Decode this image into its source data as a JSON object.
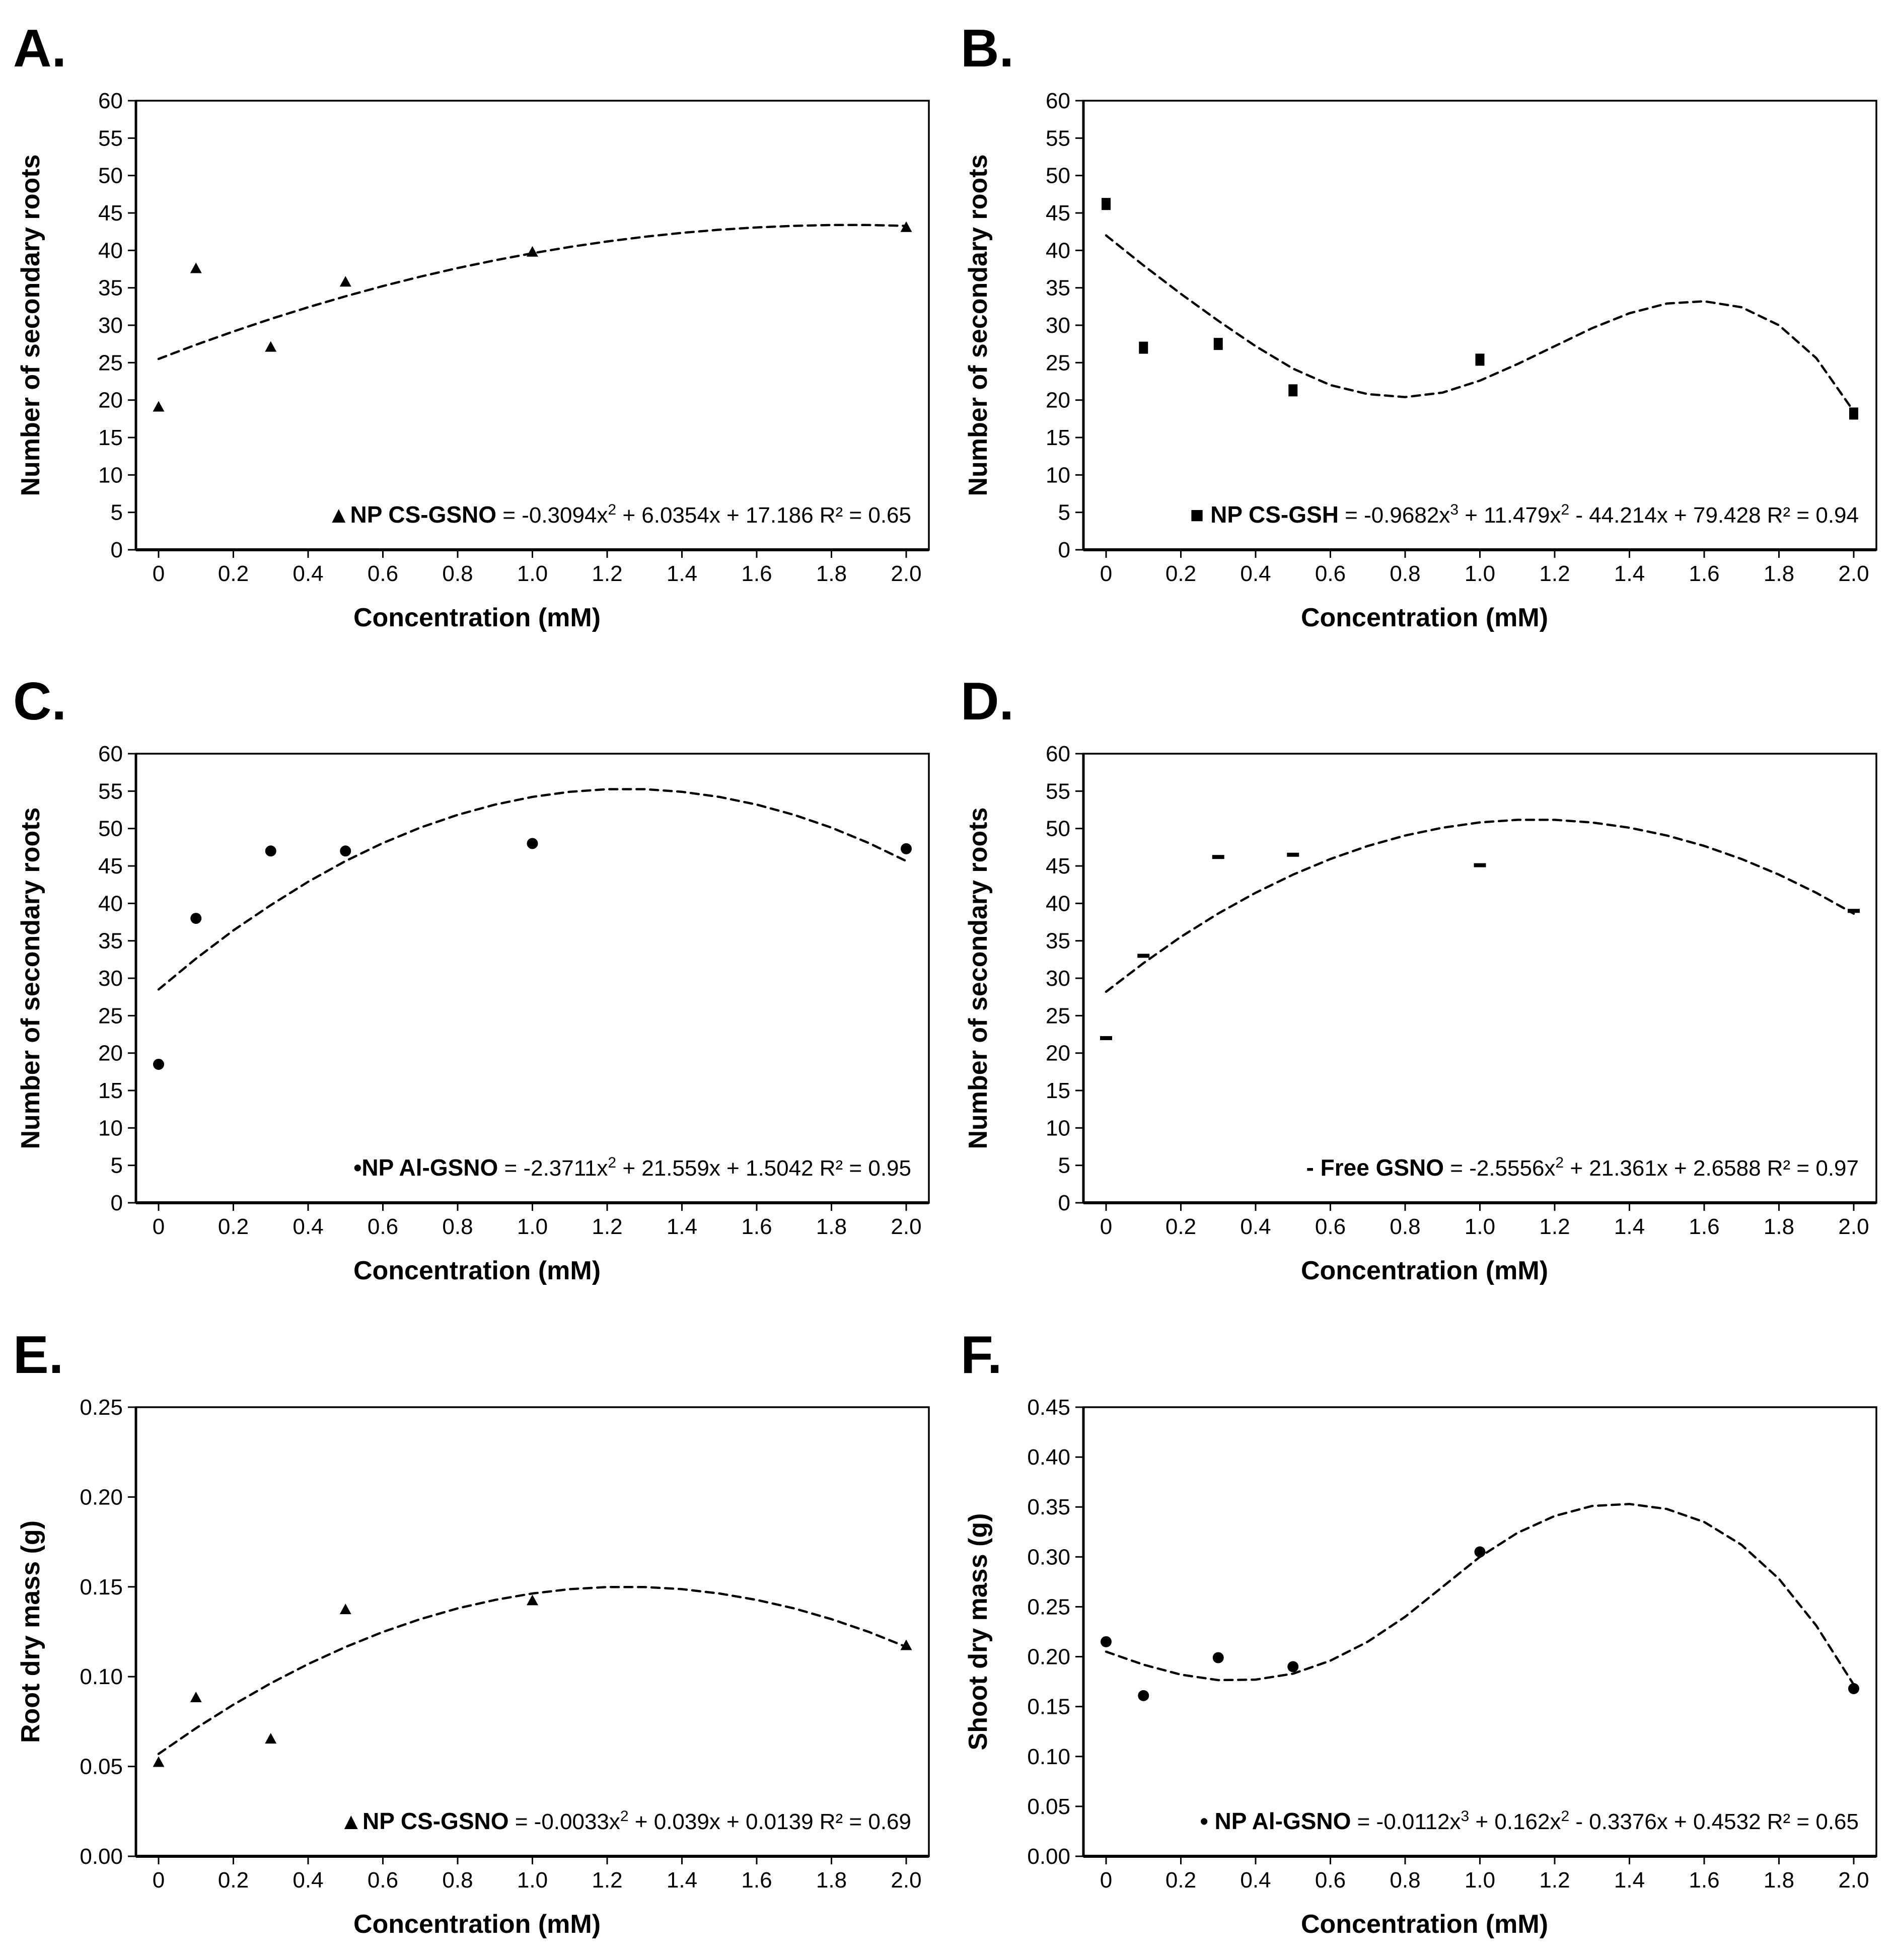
{
  "colors": {
    "ink": "#000000",
    "background": "#ffffff"
  },
  "chart_data": [
    {
      "id": "A",
      "label": "A.",
      "type": "scatter",
      "xlabel": "Concentration (mM)",
      "ylabel": "Number of secondary roots",
      "ylim": [
        0,
        60
      ],
      "ystep": 5,
      "ydec": 0,
      "xlim": [
        0,
        2
      ],
      "xticks": [
        "0",
        "0.2",
        "0.4",
        "0.6",
        "0.8",
        "1.0",
        "1.2",
        "1.4",
        "1.6",
        "1.8",
        "2.0"
      ],
      "marker": "triangle",
      "grid": false,
      "legend_position": "bottom-right-inside",
      "legend": {
        "marker_label": "▲NP CS-GSNO",
        "eq": [
          {
            "t": " = -0.3094x"
          },
          {
            "s": "2"
          },
          {
            "t": " + 6.0354x + 17.186 R² = 0.65"
          }
        ],
        "r2": 0.65
      },
      "points": [
        [
          0,
          19
        ],
        [
          0.1,
          37.5
        ],
        [
          0.3,
          27
        ],
        [
          0.5,
          35.7
        ],
        [
          1.0,
          39.7
        ],
        [
          2.0,
          43
        ]
      ],
      "trend": [
        [
          0,
          25.5
        ],
        [
          0.1,
          27.4
        ],
        [
          0.2,
          29.16
        ],
        [
          0.3,
          30.84
        ],
        [
          0.4,
          32.4
        ],
        [
          0.5,
          33.87
        ],
        [
          0.6,
          35.23
        ],
        [
          0.7,
          36.49
        ],
        [
          0.8,
          37.64
        ],
        [
          0.9,
          38.68
        ],
        [
          1.0,
          39.62
        ],
        [
          1.1,
          40.46
        ],
        [
          1.2,
          41.19
        ],
        [
          1.3,
          41.82
        ],
        [
          1.4,
          42.34
        ],
        [
          1.5,
          42.76
        ],
        [
          1.6,
          43.07
        ],
        [
          1.7,
          43.28
        ],
        [
          1.8,
          43.39
        ],
        [
          1.9,
          43.39
        ],
        [
          2.0,
          43.28
        ]
      ]
    },
    {
      "id": "B",
      "label": "B.",
      "type": "scatter",
      "xlabel": "Concentration (mM)",
      "ylabel": "Number of secondary roots",
      "ylim": [
        0,
        60
      ],
      "ystep": 5,
      "ydec": 0,
      "xlim": [
        0,
        2
      ],
      "xticks": [
        "0",
        "0.2",
        "0.4",
        "0.6",
        "0.8",
        "1.0",
        "1.2",
        "1.4",
        "1.6",
        "1.8",
        "2.0"
      ],
      "marker": "square",
      "grid": false,
      "legend_position": "bottom-right-inside",
      "legend": {
        "marker_label": "■ NP CS-GSH",
        "eq": [
          {
            "t": " = -0.9682x"
          },
          {
            "s": "3"
          },
          {
            "t": " + 11.479x"
          },
          {
            "s": "2"
          },
          {
            "t": " - 44.214x + 79.428 R² = 0.94"
          }
        ],
        "r2": 0.94
      },
      "points": [
        [
          0,
          46.2
        ],
        [
          0.1,
          27
        ],
        [
          0.3,
          27.5
        ],
        [
          0.5,
          21.3
        ],
        [
          1.0,
          25.4
        ],
        [
          2.0,
          18.2
        ]
      ],
      "trend": [
        [
          0,
          42.0
        ],
        [
          0.1,
          38.0
        ],
        [
          0.2,
          34.2
        ],
        [
          0.3,
          30.6
        ],
        [
          0.4,
          27.2
        ],
        [
          0.5,
          24.2
        ],
        [
          0.6,
          22.0
        ],
        [
          0.7,
          20.8
        ],
        [
          0.8,
          20.4
        ],
        [
          0.9,
          21.0
        ],
        [
          1.0,
          22.6
        ],
        [
          1.1,
          24.8
        ],
        [
          1.2,
          27.2
        ],
        [
          1.3,
          29.6
        ],
        [
          1.4,
          31.6
        ],
        [
          1.5,
          32.9
        ],
        [
          1.6,
          33.2
        ],
        [
          1.7,
          32.4
        ],
        [
          1.8,
          30.0
        ],
        [
          1.9,
          25.6
        ],
        [
          2.0,
          18.5
        ]
      ]
    },
    {
      "id": "C",
      "label": "C.",
      "type": "scatter",
      "xlabel": "Concentration (mM)",
      "ylabel": "Number of secondary roots",
      "ylim": [
        0,
        60
      ],
      "ystep": 5,
      "ydec": 0,
      "xlim": [
        0,
        2
      ],
      "xticks": [
        "0",
        "0.2",
        "0.4",
        "0.6",
        "0.8",
        "1.0",
        "1.2",
        "1.4",
        "1.6",
        "1.8",
        "2.0"
      ],
      "marker": "circle",
      "grid": false,
      "legend_position": "bottom-right-inside",
      "legend": {
        "marker_label": "•NP Al-GSNO",
        "eq": [
          {
            "t": " = -2.3711x"
          },
          {
            "s": "2"
          },
          {
            "t": " + 21.559x + 1.5042 R² = 0.95"
          }
        ],
        "r2": 0.95
      },
      "points": [
        [
          0,
          18.5
        ],
        [
          0.1,
          38
        ],
        [
          0.3,
          47
        ],
        [
          0.5,
          47
        ],
        [
          1.0,
          48
        ],
        [
          2.0,
          47.3
        ]
      ],
      "trend": [
        [
          0,
          28.5
        ],
        [
          0.1,
          32.62
        ],
        [
          0.2,
          36.39
        ],
        [
          0.3,
          39.77
        ],
        [
          0.4,
          42.89
        ],
        [
          0.5,
          45.66
        ],
        [
          0.6,
          48.06
        ],
        [
          0.7,
          50.12
        ],
        [
          0.8,
          51.83
        ],
        [
          0.9,
          53.2
        ],
        [
          1.0,
          54.23
        ],
        [
          1.1,
          54.91
        ],
        [
          1.2,
          55.26
        ],
        [
          1.3,
          55.26
        ],
        [
          1.4,
          54.91
        ],
        [
          1.5,
          54.23
        ],
        [
          1.6,
          53.2
        ],
        [
          1.7,
          51.83
        ],
        [
          1.8,
          50.12
        ],
        [
          1.9,
          48.06
        ],
        [
          2.0,
          45.66
        ]
      ]
    },
    {
      "id": "D",
      "label": "D.",
      "type": "scatter",
      "xlabel": "Concentration (mM)",
      "ylabel": "Number of secondary roots",
      "ylim": [
        0,
        60
      ],
      "ystep": 5,
      "ydec": 0,
      "xlim": [
        0,
        2
      ],
      "xticks": [
        "0",
        "0.2",
        "0.4",
        "0.6",
        "0.8",
        "1.0",
        "1.2",
        "1.4",
        "1.6",
        "1.8",
        "2.0"
      ],
      "marker": "dash",
      "grid": false,
      "legend_position": "bottom-right-inside",
      "legend": {
        "marker_label": "- Free GSNO",
        "eq": [
          {
            "t": " = -2.5556x"
          },
          {
            "s": "2"
          },
          {
            "t": " + 21.361x + 2.6588 R² = 0.97"
          }
        ],
        "r2": 0.97
      },
      "points": [
        [
          0,
          22
        ],
        [
          0.1,
          33
        ],
        [
          0.3,
          46.2
        ],
        [
          0.5,
          46.5
        ],
        [
          1.0,
          45.1
        ],
        [
          2.0,
          39
        ]
      ],
      "trend": [
        [
          0,
          28.2
        ],
        [
          0.1,
          32.02
        ],
        [
          0.2,
          35.53
        ],
        [
          0.3,
          38.65
        ],
        [
          0.4,
          41.42
        ],
        [
          0.5,
          43.84
        ],
        [
          0.6,
          45.93
        ],
        [
          0.7,
          47.67
        ],
        [
          0.8,
          49.07
        ],
        [
          0.9,
          50.11
        ],
        [
          1.0,
          50.82
        ],
        [
          1.1,
          51.16
        ],
        [
          1.2,
          51.16
        ],
        [
          1.3,
          50.81
        ],
        [
          1.4,
          50.11
        ],
        [
          1.5,
          49.07
        ],
        [
          1.6,
          47.68
        ],
        [
          1.7,
          45.93
        ],
        [
          1.8,
          43.84
        ],
        [
          1.9,
          41.41
        ],
        [
          2.0,
          38.63
        ]
      ]
    },
    {
      "id": "E",
      "label": "E.",
      "type": "scatter",
      "xlabel": "Concentration (mM)",
      "ylabel": "Root dry mass (g)",
      "ylim": [
        0,
        0.25
      ],
      "ystep": 0.05,
      "ydec": 2,
      "xlim": [
        0,
        2
      ],
      "xticks": [
        "0",
        "0.2",
        "0.4",
        "0.6",
        "0.8",
        "1.0",
        "1.2",
        "1.4",
        "1.6",
        "1.8",
        "2.0"
      ],
      "marker": "triangle",
      "grid": false,
      "legend_position": "bottom-right-inside",
      "legend": {
        "marker_label": "▲NP CS-GSNO",
        "eq": [
          {
            "t": " = -0.0033x"
          },
          {
            "s": "2"
          },
          {
            "t": " + 0.039x + 0.0139 R² = 0.69"
          }
        ],
        "r2": 0.69
      },
      "points": [
        [
          0,
          0.052
        ],
        [
          0.1,
          0.088
        ],
        [
          0.3,
          0.065
        ],
        [
          0.5,
          0.137
        ],
        [
          1.0,
          0.142
        ],
        [
          2.0,
          0.117
        ]
      ],
      "trend": [
        [
          0,
          0.057
        ],
        [
          0.1,
          0.0713
        ],
        [
          0.2,
          0.0844
        ],
        [
          0.3,
          0.0963
        ],
        [
          0.4,
          0.107
        ],
        [
          0.5,
          0.1165
        ],
        [
          0.6,
          0.1249
        ],
        [
          0.7,
          0.132
        ],
        [
          0.8,
          0.138
        ],
        [
          0.9,
          0.1427
        ],
        [
          1.0,
          0.1463
        ],
        [
          1.1,
          0.1487
        ],
        [
          1.2,
          0.1499
        ],
        [
          1.3,
          0.1499
        ],
        [
          1.4,
          0.1487
        ],
        [
          1.5,
          0.1463
        ],
        [
          1.6,
          0.1427
        ],
        [
          1.7,
          0.138
        ],
        [
          1.8,
          0.132
        ],
        [
          1.9,
          0.1249
        ],
        [
          2.0,
          0.1166
        ]
      ]
    },
    {
      "id": "F",
      "label": "F.",
      "type": "scatter",
      "xlabel": "Concentration (mM)",
      "ylabel": "Shoot dry mass (g)",
      "ylim": [
        0,
        0.45
      ],
      "ystep": 0.05,
      "ydec": 2,
      "xlim": [
        0,
        2
      ],
      "xticks": [
        "0",
        "0.2",
        "0.4",
        "0.6",
        "0.8",
        "1.0",
        "1.2",
        "1.4",
        "1.6",
        "1.8",
        "2.0"
      ],
      "marker": "circle",
      "grid": false,
      "legend_position": "bottom-right-inside",
      "legend": {
        "marker_label": "• NP Al-GSNO",
        "eq": [
          {
            "t": " = -0.0112x"
          },
          {
            "s": "3"
          },
          {
            "t": " + 0.162x"
          },
          {
            "s": "2"
          },
          {
            "t": " - 0.3376x + 0.4532 R² = 0.65"
          }
        ],
        "r2": 0.65
      },
      "points": [
        [
          0,
          0.215
        ],
        [
          0.1,
          0.161
        ],
        [
          0.3,
          0.199
        ],
        [
          0.5,
          0.19
        ],
        [
          1.0,
          0.305
        ],
        [
          2.0,
          0.168
        ]
      ],
      "trend": [
        [
          0,
          0.205
        ],
        [
          0.1,
          0.192
        ],
        [
          0.2,
          0.182
        ],
        [
          0.3,
          0.1765
        ],
        [
          0.4,
          0.177
        ],
        [
          0.5,
          0.183
        ],
        [
          0.6,
          0.196
        ],
        [
          0.7,
          0.215
        ],
        [
          0.8,
          0.24
        ],
        [
          0.9,
          0.27
        ],
        [
          1.0,
          0.3
        ],
        [
          1.1,
          0.324
        ],
        [
          1.2,
          0.341
        ],
        [
          1.3,
          0.351
        ],
        [
          1.4,
          0.353
        ],
        [
          1.5,
          0.348
        ],
        [
          1.6,
          0.335
        ],
        [
          1.7,
          0.312
        ],
        [
          1.8,
          0.278
        ],
        [
          1.9,
          0.231
        ],
        [
          2.0,
          0.172
        ]
      ]
    }
  ]
}
